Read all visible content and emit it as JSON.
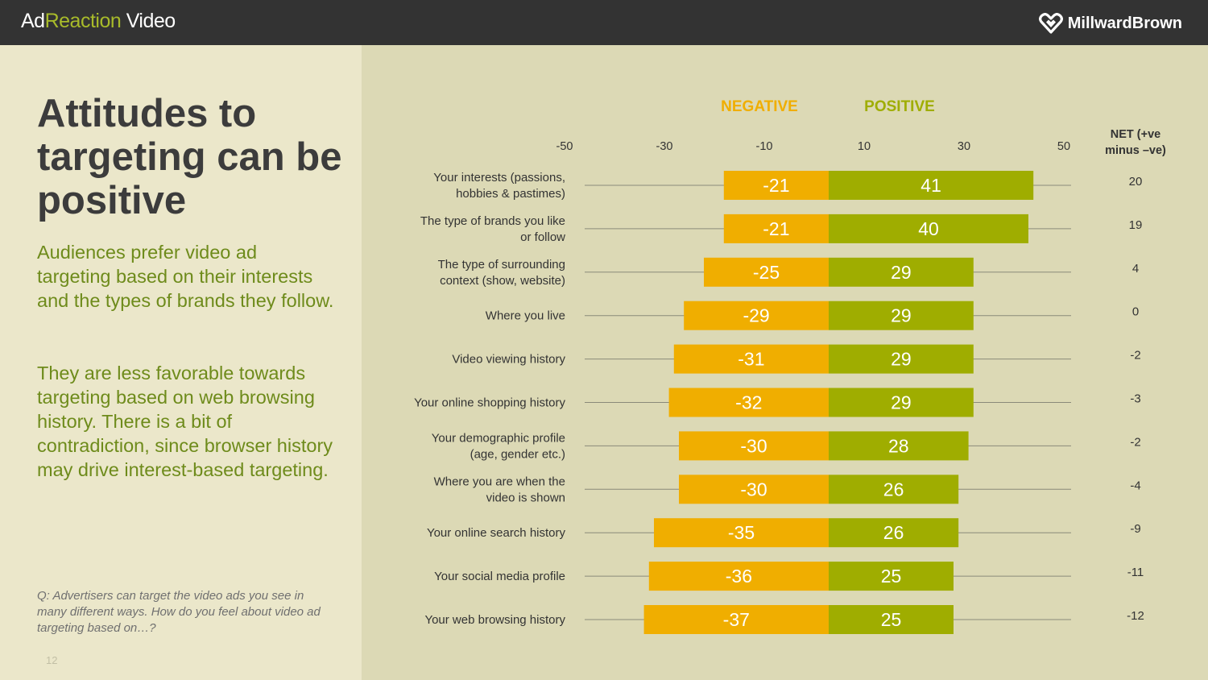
{
  "header": {
    "brand_prefix": "Ad",
    "brand_highlight": "Reaction",
    "brand_suffix": " Video",
    "logo_text": "MillwardBrown"
  },
  "left": {
    "title": "Attitudes to targeting can be positive",
    "paragraph1": "Audiences prefer video ad targeting based on their interests and the types of brands they follow.",
    "paragraph2": "They are less favorable towards targeting based on web browsing history. There is a bit of contradiction, since browser history may drive interest-based targeting.",
    "question": "Q: Advertisers can target the video ads you see in many different ways. How do you feel about video ad targeting based on…?",
    "page_number": "12"
  },
  "colors": {
    "negative": "#f0ae00",
    "positive": "#9fad00",
    "negative_header": "#f0ae00",
    "positive_header": "#9fad00"
  },
  "chart_data": {
    "type": "bar",
    "orientation": "horizontal-diverging",
    "headers": {
      "negative": "NEGATIVE",
      "positive": "POSITIVE",
      "net": "NET (+ve minus –ve)"
    },
    "xlim": [
      -50,
      50
    ],
    "x_ticks": [
      "-50",
      "-30",
      "-10",
      "10",
      "30",
      "50"
    ],
    "categories": [
      [
        "Your interests (passions,",
        "hobbies & pastimes)"
      ],
      [
        "The type of brands you like",
        "or follow"
      ],
      [
        "The type of surrounding",
        "context (show, website)"
      ],
      [
        "Where you live"
      ],
      [
        "Video viewing history"
      ],
      [
        "Your online shopping history"
      ],
      [
        "Your demographic profile",
        "(age, gender etc.)"
      ],
      [
        "Where you are when the",
        "video is shown"
      ],
      [
        "Your online search history"
      ],
      [
        "Your social media profile"
      ],
      [
        "Your web browsing history"
      ]
    ],
    "series": [
      {
        "name": "NEGATIVE",
        "values": [
          -21,
          -21,
          -25,
          -29,
          -31,
          -32,
          -30,
          -30,
          -35,
          -36,
          -37
        ]
      },
      {
        "name": "POSITIVE",
        "values": [
          41,
          40,
          29,
          29,
          29,
          29,
          28,
          26,
          26,
          25,
          25
        ]
      }
    ],
    "net": [
      20,
      19,
      4,
      0,
      -2,
      -3,
      -2,
      -4,
      -9,
      -11,
      -12
    ]
  }
}
